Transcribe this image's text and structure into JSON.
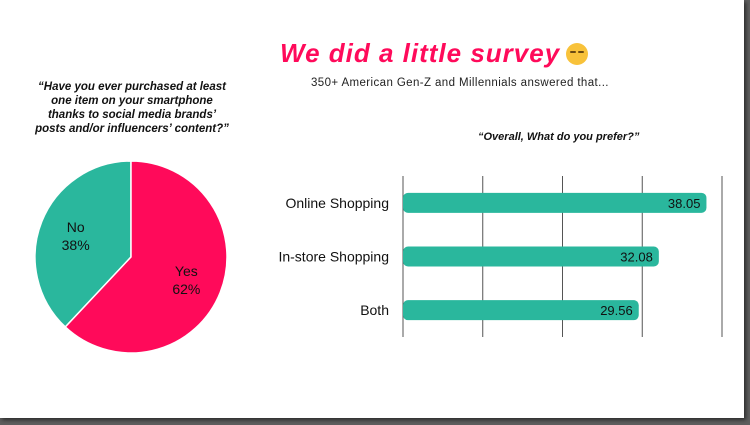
{
  "title": "We did a little survey",
  "title_emoji": "smirking-face-emoji",
  "subtitle": "350+ American Gen-Z and Millennials answered that...",
  "colors": {
    "pink": "#ff0a5a",
    "teal": "#2ab79d"
  },
  "chart_data": [
    {
      "type": "pie",
      "title": "“Have you ever purchased at least one item on your smartphone thanks to social media brands’ posts and/or influencers’ content?”",
      "slices": [
        {
          "label": "No",
          "value": 38,
          "display": "38%",
          "color": "#2ab79d"
        },
        {
          "label": "Yes",
          "value": 62,
          "display": "62%",
          "color": "#ff0a5a"
        }
      ]
    },
    {
      "type": "bar",
      "orientation": "horizontal",
      "title": "“Overall, What do you prefer?”",
      "categories": [
        "Online Shopping",
        "In-store Shopping",
        "Both"
      ],
      "values": [
        38.05,
        32.08,
        29.56
      ],
      "value_labels": [
        "38.05",
        "32.08",
        "29.56"
      ],
      "xlim": [
        0,
        40
      ],
      "grid": true,
      "color": "#2ab79d"
    }
  ]
}
